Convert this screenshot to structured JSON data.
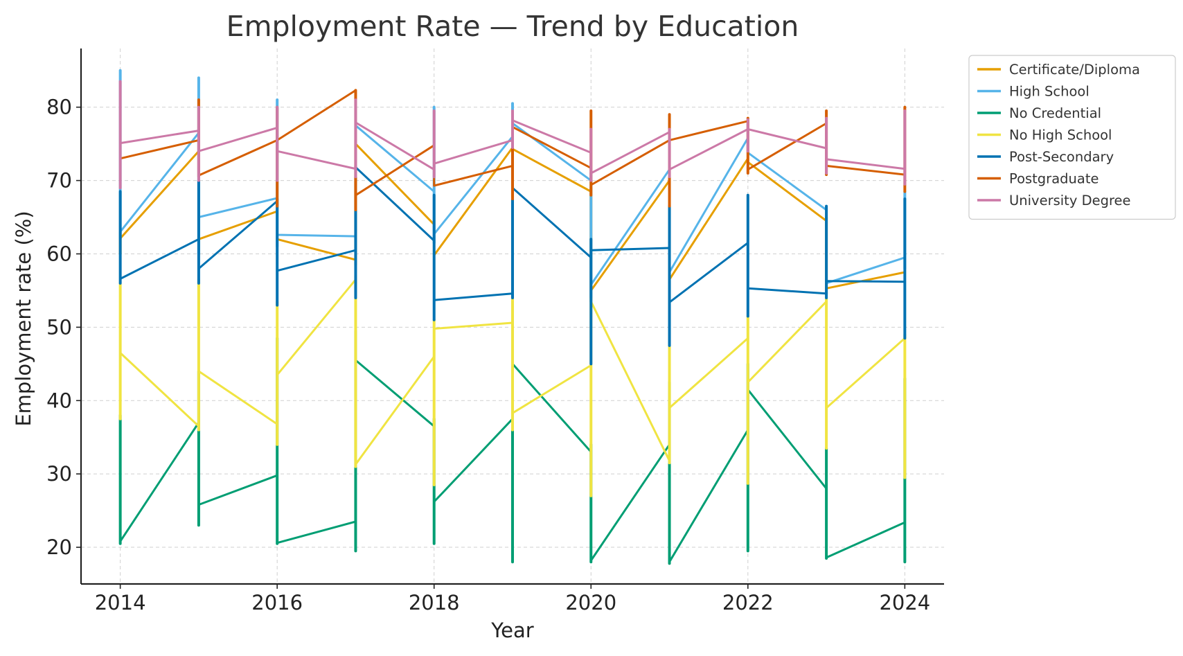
{
  "chart_data": {
    "type": "line",
    "title": "Employment Rate — Trend by Education",
    "xlabel": "Year",
    "ylabel": "Employment rate (%)",
    "xlim": [
      2013.5,
      2024.5
    ],
    "ylim": [
      15,
      88
    ],
    "xticks": [
      2014,
      2016,
      2018,
      2020,
      2022,
      2024
    ],
    "yticks": [
      20,
      30,
      40,
      50,
      60,
      70,
      80
    ],
    "grid": true,
    "legend_position": "outside-top-right",
    "series": [
      {
        "name": "Certificate/Diploma",
        "color": "#E69F00",
        "points": [
          {
            "x": 2014,
            "y": 61.8
          },
          {
            "x": 2014,
            "y": 62.1
          },
          {
            "x": 2015,
            "y": 74.0
          },
          {
            "x": 2015,
            "y": 62.0
          },
          {
            "x": 2016,
            "y": 65.8
          },
          {
            "x": 2016,
            "y": 62.0
          },
          {
            "x": 2017,
            "y": 59.2
          },
          {
            "x": 2017,
            "y": 75.0
          },
          {
            "x": 2018,
            "y": 64.0
          },
          {
            "x": 2018,
            "y": 59.8
          },
          {
            "x": 2019,
            "y": 74.5
          },
          {
            "x": 2019,
            "y": 74.3
          },
          {
            "x": 2020,
            "y": 68.5
          },
          {
            "x": 2020,
            "y": 55.0
          },
          {
            "x": 2021,
            "y": 70.0
          },
          {
            "x": 2021,
            "y": 56.5
          },
          {
            "x": 2022,
            "y": 73.0
          },
          {
            "x": 2022,
            "y": 72.5
          },
          {
            "x": 2023,
            "y": 64.5
          },
          {
            "x": 2023,
            "y": 55.3
          },
          {
            "x": 2024,
            "y": 57.5
          }
        ],
        "ranges": [
          {
            "x": 2014,
            "low": 60.0,
            "high": 63.0
          },
          {
            "x": 2017,
            "low": 58.5,
            "high": 75.5
          },
          {
            "x": 2020,
            "low": 54.0,
            "high": 69.0
          },
          {
            "x": 2023,
            "low": 54.5,
            "high": 65.0
          }
        ]
      },
      {
        "name": "High School",
        "color": "#56B4E9",
        "points": [
          {
            "x": 2014,
            "y": 62.8
          },
          {
            "x": 2014,
            "y": 63.0
          },
          {
            "x": 2015,
            "y": 76.5
          },
          {
            "x": 2015,
            "y": 65.0
          },
          {
            "x": 2016,
            "y": 67.6
          },
          {
            "x": 2016,
            "y": 62.6
          },
          {
            "x": 2017,
            "y": 62.4
          },
          {
            "x": 2017,
            "y": 77.5
          },
          {
            "x": 2018,
            "y": 68.5
          },
          {
            "x": 2018,
            "y": 62.7
          },
          {
            "x": 2019,
            "y": 76.0
          },
          {
            "x": 2019,
            "y": 77.8
          },
          {
            "x": 2020,
            "y": 70.0
          },
          {
            "x": 2020,
            "y": 55.8
          },
          {
            "x": 2021,
            "y": 71.5
          },
          {
            "x": 2021,
            "y": 57.5
          },
          {
            "x": 2022,
            "y": 75.8
          },
          {
            "x": 2022,
            "y": 73.8
          },
          {
            "x": 2023,
            "y": 66.0
          },
          {
            "x": 2023,
            "y": 56.0
          },
          {
            "x": 2024,
            "y": 59.5
          }
        ],
        "ranges": [
          {
            "x": 2014,
            "low": 62.0,
            "high": 85.0
          },
          {
            "x": 2015,
            "low": 60.0,
            "high": 84.0
          },
          {
            "x": 2016,
            "low": 61.0,
            "high": 81.0
          },
          {
            "x": 2018,
            "low": 61.5,
            "high": 80.0
          },
          {
            "x": 2019,
            "low": 73.0,
            "high": 80.5
          },
          {
            "x": 2020,
            "low": 53.5,
            "high": 71.0
          },
          {
            "x": 2024,
            "low": 58.0,
            "high": 68.5
          }
        ]
      },
      {
        "name": "No Credential",
        "color": "#009E73",
        "points": [
          {
            "x": 2014,
            "y": 37.5
          },
          {
            "x": 2014,
            "y": 20.8
          },
          {
            "x": 2015,
            "y": 37.0
          },
          {
            "x": 2015,
            "y": 25.8
          },
          {
            "x": 2016,
            "y": 29.8
          },
          {
            "x": 2016,
            "y": 20.6
          },
          {
            "x": 2017,
            "y": 23.5
          },
          {
            "x": 2017,
            "y": 45.5
          },
          {
            "x": 2018,
            "y": 36.5
          },
          {
            "x": 2018,
            "y": 26.2
          },
          {
            "x": 2019,
            "y": 37.5
          },
          {
            "x": 2019,
            "y": 45.0
          },
          {
            "x": 2020,
            "y": 33.0
          },
          {
            "x": 2020,
            "y": 18.2
          },
          {
            "x": 2021,
            "y": 34.0
          },
          {
            "x": 2021,
            "y": 18.0
          },
          {
            "x": 2022,
            "y": 36.0
          },
          {
            "x": 2022,
            "y": 41.5
          },
          {
            "x": 2023,
            "y": 28.0
          },
          {
            "x": 2023,
            "y": 18.6
          },
          {
            "x": 2024,
            "y": 23.4
          }
        ],
        "ranges": [
          {
            "x": 2014,
            "low": 20.5,
            "high": 38.0
          },
          {
            "x": 2015,
            "low": 23.0,
            "high": 44.0
          },
          {
            "x": 2016,
            "low": 20.5,
            "high": 48.5
          },
          {
            "x": 2017,
            "low": 19.5,
            "high": 49.5
          },
          {
            "x": 2018,
            "low": 20.5,
            "high": 37.5
          },
          {
            "x": 2019,
            "low": 18.0,
            "high": 47.0
          },
          {
            "x": 2020,
            "low": 18.0,
            "high": 34.0
          },
          {
            "x": 2021,
            "low": 17.8,
            "high": 42.5
          },
          {
            "x": 2022,
            "low": 19.5,
            "high": 45.0
          },
          {
            "x": 2023,
            "low": 18.5,
            "high": 33.5
          },
          {
            "x": 2024,
            "low": 18.0,
            "high": 43.0
          }
        ]
      },
      {
        "name": "No High School",
        "color": "#F0E442",
        "points": [
          {
            "x": 2014,
            "y": 55.5
          },
          {
            "x": 2014,
            "y": 46.5
          },
          {
            "x": 2015,
            "y": 36.5
          },
          {
            "x": 2015,
            "y": 44.0
          },
          {
            "x": 2016,
            "y": 36.8
          },
          {
            "x": 2016,
            "y": 43.5
          },
          {
            "x": 2017,
            "y": 56.5
          },
          {
            "x": 2017,
            "y": 31.3
          },
          {
            "x": 2018,
            "y": 46.0
          },
          {
            "x": 2018,
            "y": 49.8
          },
          {
            "x": 2019,
            "y": 50.6
          },
          {
            "x": 2019,
            "y": 38.3
          },
          {
            "x": 2020,
            "y": 44.8
          },
          {
            "x": 2020,
            "y": 53.5
          },
          {
            "x": 2021,
            "y": 31.8
          },
          {
            "x": 2021,
            "y": 39.0
          },
          {
            "x": 2022,
            "y": 48.5
          },
          {
            "x": 2022,
            "y": 42.5
          },
          {
            "x": 2023,
            "y": 53.5
          },
          {
            "x": 2023,
            "y": 39.0
          },
          {
            "x": 2024,
            "y": 48.5
          }
        ],
        "ranges": [
          {
            "x": 2014,
            "low": 37.5,
            "high": 56.0
          },
          {
            "x": 2015,
            "low": 36.0,
            "high": 56.5
          },
          {
            "x": 2016,
            "low": 34.0,
            "high": 53.5
          },
          {
            "x": 2017,
            "low": 31.0,
            "high": 57.0
          },
          {
            "x": 2018,
            "low": 28.5,
            "high": 51.0
          },
          {
            "x": 2019,
            "low": 36.0,
            "high": 54.5
          },
          {
            "x": 2020,
            "low": 27.0,
            "high": 54.0
          },
          {
            "x": 2021,
            "low": 31.5,
            "high": 47.5
          },
          {
            "x": 2022,
            "low": 28.7,
            "high": 51.5
          },
          {
            "x": 2023,
            "low": 33.5,
            "high": 54.0
          },
          {
            "x": 2024,
            "low": 29.5,
            "high": 49.0
          }
        ]
      },
      {
        "name": "Post-Secondary",
        "color": "#0072B2",
        "points": [
          {
            "x": 2014,
            "y": 68.0
          },
          {
            "x": 2014,
            "y": 56.6
          },
          {
            "x": 2015,
            "y": 62.0
          },
          {
            "x": 2015,
            "y": 58.0
          },
          {
            "x": 2016,
            "y": 67.2
          },
          {
            "x": 2016,
            "y": 57.7
          },
          {
            "x": 2017,
            "y": 60.5
          },
          {
            "x": 2017,
            "y": 71.8
          },
          {
            "x": 2018,
            "y": 61.8
          },
          {
            "x": 2018,
            "y": 53.7
          },
          {
            "x": 2019,
            "y": 54.6
          },
          {
            "x": 2019,
            "y": 69.0
          },
          {
            "x": 2020,
            "y": 59.5
          },
          {
            "x": 2020,
            "y": 60.5
          },
          {
            "x": 2021,
            "y": 60.8
          },
          {
            "x": 2021,
            "y": 53.4
          },
          {
            "x": 2022,
            "y": 61.5
          },
          {
            "x": 2022,
            "y": 55.3
          },
          {
            "x": 2023,
            "y": 54.6
          },
          {
            "x": 2023,
            "y": 56.3
          },
          {
            "x": 2024,
            "y": 56.2
          }
        ],
        "ranges": [
          {
            "x": 2014,
            "low": 56.0,
            "high": 68.5
          },
          {
            "x": 2015,
            "low": 56.0,
            "high": 70.0
          },
          {
            "x": 2016,
            "low": 53.0,
            "high": 67.5
          },
          {
            "x": 2017,
            "low": 54.0,
            "high": 72.0
          },
          {
            "x": 2018,
            "low": 51.0,
            "high": 68.0
          },
          {
            "x": 2019,
            "low": 54.0,
            "high": 69.5
          },
          {
            "x": 2020,
            "low": 45.0,
            "high": 62.0
          },
          {
            "x": 2021,
            "low": 47.5,
            "high": 66.5
          },
          {
            "x": 2022,
            "low": 51.5,
            "high": 68.0
          },
          {
            "x": 2023,
            "low": 54.0,
            "high": 66.5
          },
          {
            "x": 2024,
            "low": 48.5,
            "high": 67.5
          }
        ]
      },
      {
        "name": "Postgraduate",
        "color": "#D55E00",
        "points": [
          {
            "x": 2014,
            "y": 73.0
          },
          {
            "x": 2014,
            "y": 73.0
          },
          {
            "x": 2015,
            "y": 75.5
          },
          {
            "x": 2015,
            "y": 70.7
          },
          {
            "x": 2016,
            "y": 75.5
          },
          {
            "x": 2016,
            "y": 75.5
          },
          {
            "x": 2017,
            "y": 82.3
          },
          {
            "x": 2017,
            "y": 68.0
          },
          {
            "x": 2018,
            "y": 74.8
          },
          {
            "x": 2018,
            "y": 69.3
          },
          {
            "x": 2019,
            "y": 72.0
          },
          {
            "x": 2019,
            "y": 77.3
          },
          {
            "x": 2020,
            "y": 71.7
          },
          {
            "x": 2020,
            "y": 69.4
          },
          {
            "x": 2021,
            "y": 75.5
          },
          {
            "x": 2021,
            "y": 75.5
          },
          {
            "x": 2022,
            "y": 78.1
          },
          {
            "x": 2022,
            "y": 71.5
          },
          {
            "x": 2023,
            "y": 77.8
          },
          {
            "x": 2023,
            "y": 72.0
          },
          {
            "x": 2024,
            "y": 70.8
          }
        ],
        "ranges": [
          {
            "x": 2015,
            "low": 70.5,
            "high": 81.0
          },
          {
            "x": 2016,
            "low": 66.5,
            "high": 80.0
          },
          {
            "x": 2017,
            "low": 66.0,
            "high": 82.3
          },
          {
            "x": 2019,
            "low": 67.5,
            "high": 78.0
          },
          {
            "x": 2020,
            "low": 68.0,
            "high": 79.5
          },
          {
            "x": 2021,
            "low": 66.5,
            "high": 79.0
          },
          {
            "x": 2022,
            "low": 71.0,
            "high": 78.5
          },
          {
            "x": 2023,
            "low": 70.8,
            "high": 79.5
          },
          {
            "x": 2024,
            "low": 68.5,
            "high": 80.0
          }
        ]
      },
      {
        "name": "University Degree",
        "color": "#CC79A7",
        "points": [
          {
            "x": 2014,
            "y": 75.1
          },
          {
            "x": 2014,
            "y": 75.1
          },
          {
            "x": 2015,
            "y": 76.8
          },
          {
            "x": 2015,
            "y": 74.0
          },
          {
            "x": 2016,
            "y": 77.2
          },
          {
            "x": 2016,
            "y": 74.0
          },
          {
            "x": 2017,
            "y": 71.6
          },
          {
            "x": 2017,
            "y": 77.9
          },
          {
            "x": 2018,
            "y": 71.5
          },
          {
            "x": 2018,
            "y": 72.3
          },
          {
            "x": 2019,
            "y": 75.5
          },
          {
            "x": 2019,
            "y": 78.2
          },
          {
            "x": 2020,
            "y": 73.8
          },
          {
            "x": 2020,
            "y": 71.0
          },
          {
            "x": 2021,
            "y": 76.6
          },
          {
            "x": 2021,
            "y": 71.5
          },
          {
            "x": 2022,
            "y": 77.0
          },
          {
            "x": 2022,
            "y": 77.0
          },
          {
            "x": 2023,
            "y": 74.4
          },
          {
            "x": 2023,
            "y": 72.9
          },
          {
            "x": 2024,
            "y": 71.6
          }
        ],
        "ranges": [
          {
            "x": 2014,
            "low": 69.0,
            "high": 83.5
          },
          {
            "x": 2015,
            "low": 70.0,
            "high": 80.0
          },
          {
            "x": 2016,
            "low": 70.0,
            "high": 80.0
          },
          {
            "x": 2017,
            "low": 70.5,
            "high": 81.0
          },
          {
            "x": 2018,
            "low": 70.5,
            "high": 79.5
          },
          {
            "x": 2019,
            "low": 74.5,
            "high": 79.5
          },
          {
            "x": 2020,
            "low": 70.0,
            "high": 77.0
          },
          {
            "x": 2021,
            "low": 70.5,
            "high": 77.0
          },
          {
            "x": 2022,
            "low": 74.0,
            "high": 78.3
          },
          {
            "x": 2023,
            "low": 71.0,
            "high": 78.5
          },
          {
            "x": 2024,
            "low": 69.5,
            "high": 79.5
          }
        ]
      }
    ]
  }
}
